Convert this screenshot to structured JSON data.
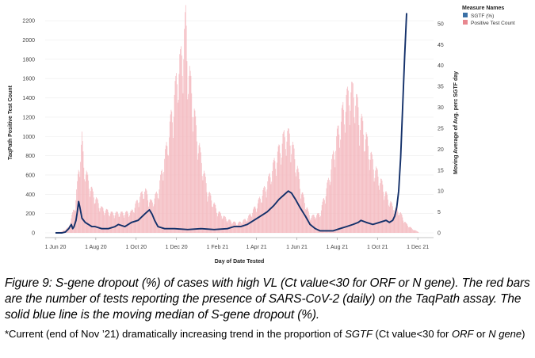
{
  "chart_data": {
    "type": "bar+line",
    "xlabel": "Day of Date Tested",
    "ylabel_left": "TaqPath Positive Test Count",
    "ylabel_right": "Moving Average of Avg. perc SGTF day",
    "x_ticks": [
      "1 Jun 20",
      "1 Aug 20",
      "1 Oct 20",
      "1 Dec 20",
      "1 Feb 21",
      "1 Apr 21",
      "1 Jun 21",
      "1 Aug 21",
      "1 Oct 21",
      "1 Dec 21"
    ],
    "y_left_ticks": [
      "2200",
      "2000",
      "1800",
      "1600",
      "1400",
      "1200",
      "1000",
      "800",
      "600",
      "400",
      "200",
      "0"
    ],
    "y_right_ticks": [
      "50",
      "45",
      "40",
      "35",
      "30",
      "25",
      "20",
      "15",
      "10",
      "5",
      "0"
    ],
    "y_left_range": [
      0,
      2300
    ],
    "y_right_range": [
      0,
      53
    ],
    "legend": {
      "title": "Measure Names",
      "items": [
        {
          "label": "SGTF (%)",
          "color": "#3a70a6"
        },
        {
          "label": "Positive Test Count",
          "color": "#e8878f"
        }
      ]
    },
    "series": [
      {
        "name": "Positive Test Count",
        "kind": "bar",
        "color": "#f4b9bf",
        "points": [
          [
            0,
            5
          ],
          [
            10,
            15
          ],
          [
            20,
            60
          ],
          [
            30,
            300
          ],
          [
            35,
            650
          ],
          [
            40,
            1000
          ],
          [
            43,
            720
          ],
          [
            50,
            550
          ],
          [
            58,
            400
          ],
          [
            70,
            260
          ],
          [
            85,
            210
          ],
          [
            100,
            210
          ],
          [
            115,
            220
          ],
          [
            125,
            350
          ],
          [
            135,
            460
          ],
          [
            145,
            320
          ],
          [
            155,
            430
          ],
          [
            168,
            900
          ],
          [
            178,
            1350
          ],
          [
            185,
            1700
          ],
          [
            192,
            1900
          ],
          [
            197,
            2250
          ],
          [
            200,
            1800
          ],
          [
            206,
            1500
          ],
          [
            212,
            1150
          ],
          [
            220,
            800
          ],
          [
            230,
            450
          ],
          [
            245,
            230
          ],
          [
            260,
            140
          ],
          [
            275,
            100
          ],
          [
            290,
            150
          ],
          [
            305,
            300
          ],
          [
            320,
            520
          ],
          [
            335,
            820
          ],
          [
            348,
            1050
          ],
          [
            355,
            1020
          ],
          [
            363,
            780
          ],
          [
            373,
            420
          ],
          [
            385,
            170
          ],
          [
            400,
            200
          ],
          [
            413,
            550
          ],
          [
            425,
            1000
          ],
          [
            437,
            1350
          ],
          [
            445,
            1500
          ],
          [
            452,
            1480
          ],
          [
            462,
            1200
          ],
          [
            472,
            950
          ],
          [
            482,
            700
          ],
          [
            492,
            550
          ],
          [
            502,
            380
          ],
          [
            510,
            280
          ],
          [
            520,
            230
          ],
          [
            530,
            100
          ],
          [
            540,
            40
          ],
          [
            549,
            10
          ]
        ]
      },
      {
        "name": "SGTF (%)",
        "kind": "line",
        "color": "#13306a",
        "points": [
          [
            0,
            0
          ],
          [
            10,
            0
          ],
          [
            15,
            0.2
          ],
          [
            20,
            1
          ],
          [
            24,
            2
          ],
          [
            26,
            1
          ],
          [
            28,
            1.5
          ],
          [
            31,
            3
          ],
          [
            33,
            5
          ],
          [
            35,
            7.5
          ],
          [
            37,
            6
          ],
          [
            40,
            3.5
          ],
          [
            45,
            2.5
          ],
          [
            50,
            2
          ],
          [
            55,
            1.5
          ],
          [
            60,
            1.5
          ],
          [
            70,
            1
          ],
          [
            80,
            1
          ],
          [
            90,
            1.5
          ],
          [
            95,
            2
          ],
          [
            105,
            1.5
          ],
          [
            115,
            2.5
          ],
          [
            125,
            3
          ],
          [
            135,
            4.5
          ],
          [
            142,
            5.5
          ],
          [
            146,
            4.5
          ],
          [
            150,
            3
          ],
          [
            155,
            1.5
          ],
          [
            165,
            1
          ],
          [
            180,
            1
          ],
          [
            200,
            0.8
          ],
          [
            220,
            1
          ],
          [
            240,
            0.8
          ],
          [
            260,
            1
          ],
          [
            270,
            1.5
          ],
          [
            280,
            1.5
          ],
          [
            290,
            2
          ],
          [
            300,
            3
          ],
          [
            310,
            4
          ],
          [
            320,
            5
          ],
          [
            330,
            6.5
          ],
          [
            338,
            8
          ],
          [
            345,
            9
          ],
          [
            352,
            10
          ],
          [
            357,
            9.5
          ],
          [
            363,
            8
          ],
          [
            370,
            6
          ],
          [
            378,
            4
          ],
          [
            385,
            2
          ],
          [
            393,
            1
          ],
          [
            400,
            0.5
          ],
          [
            410,
            0.5
          ],
          [
            420,
            0.5
          ],
          [
            430,
            1
          ],
          [
            440,
            1.5
          ],
          [
            450,
            2
          ],
          [
            458,
            2.5
          ],
          [
            462,
            3
          ],
          [
            470,
            2.5
          ],
          [
            480,
            2
          ],
          [
            490,
            2.5
          ],
          [
            500,
            3
          ],
          [
            505,
            2.5
          ],
          [
            510,
            3
          ],
          [
            513,
            4
          ],
          [
            516,
            6
          ],
          [
            519,
            10
          ],
          [
            522,
            18
          ],
          [
            525,
            30
          ],
          [
            528,
            42
          ],
          [
            531,
            52.5
          ]
        ]
      }
    ]
  },
  "caption": "Figure 9: S-gene dropout (%) of cases with high VL (Ct value<30 for ORF or N gene). The red bars are the number of tests reporting the presence of SARS-CoV-2 (daily) on the TaqPath assay. The solid blue line is the moving median of S-gene dropout (%).",
  "note": {
    "p1": "*Current (end of Nov ’21) dramatically increasing trend in the proportion of ",
    "p2": "SGTF",
    "p3": " (Ct value<30 for ",
    "p4": "ORF",
    "p5": " or ",
    "p6": "N gene",
    "p7": ")"
  }
}
